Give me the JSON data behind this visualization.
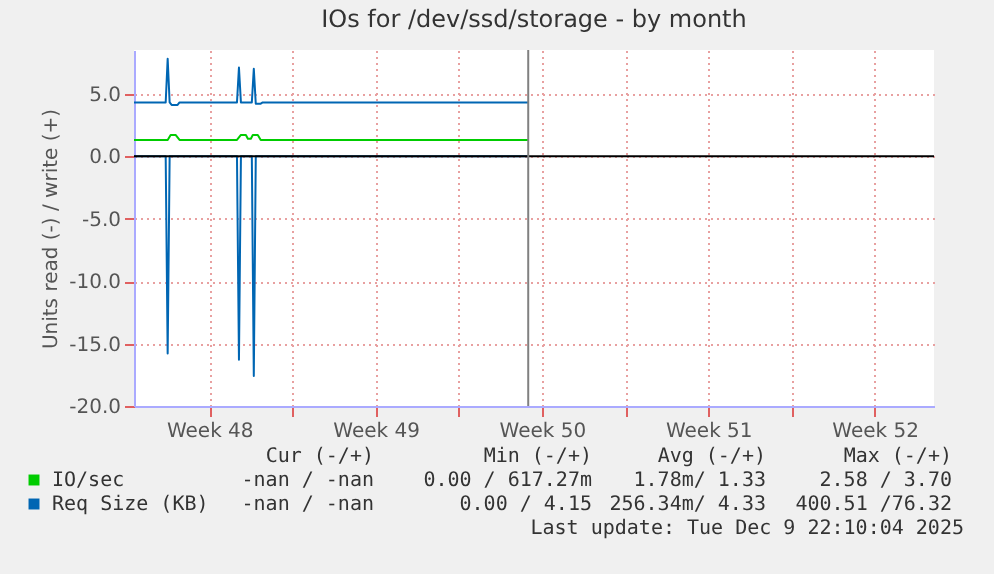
{
  "chart_data": {
    "type": "line",
    "title": "IOs for /dev/ssd/storage - by month",
    "ylabel": "Units read (-) / write (+)",
    "xlim": [
      "2025-11-23T08:00",
      "2025-12-27T00:00"
    ],
    "ylim": [
      -20,
      8.5
    ],
    "xticks": [
      {
        "value": "2025-11-26T12:00",
        "label": "Week 48"
      },
      {
        "value": "2025-11-30",
        "label": null
      },
      {
        "value": "2025-12-03T12:00",
        "label": "Week 49"
      },
      {
        "value": "2025-12-07",
        "label": null
      },
      {
        "value": "2025-12-10T12:00",
        "label": "Week 50"
      },
      {
        "value": "2025-12-14",
        "label": null
      },
      {
        "value": "2025-12-17T12:00",
        "label": "Week 51"
      },
      {
        "value": "2025-12-21",
        "label": null
      },
      {
        "value": "2025-12-24T12:00",
        "label": "Week 52"
      }
    ],
    "yticks": [
      {
        "value": 5,
        "label": "5.0"
      },
      {
        "value": 0,
        "label": "0.0"
      },
      {
        "value": -5,
        "label": "-5.0"
      },
      {
        "value": -10,
        "label": "-10.0"
      },
      {
        "value": -15,
        "label": "-15.0"
      },
      {
        "value": -20,
        "label": "-20.0"
      }
    ],
    "grid": true,
    "legend": "bottom",
    "series": [
      {
        "name": "IO/sec",
        "color": "#00cc00",
        "x": [
          "2025-11-23T08:00",
          "2025-11-24T18:00",
          "2025-11-24T21:00",
          "2025-11-25T02:00",
          "2025-11-25T06:00",
          "2025-11-27T16:00",
          "2025-11-27T20:00",
          "2025-11-28T01:00",
          "2025-11-28T03:00",
          "2025-11-28T06:00",
          "2025-11-28T08:00",
          "2025-11-28T13:00",
          "2025-11-28T16:00",
          "2025-12-09T22:10"
        ],
        "values": [
          1.3,
          1.3,
          1.7,
          1.7,
          1.3,
          1.3,
          1.7,
          1.7,
          1.4,
          1.4,
          1.7,
          1.7,
          1.3,
          1.3
        ]
      },
      {
        "name": "Req Size (KB)",
        "color": "#0066b3",
        "x": [
          "2025-11-23T08:00",
          "2025-11-24T16:00",
          "2025-11-24T18:00",
          "2025-11-24T20:00",
          "2025-11-24T22:00",
          "2025-11-25T04:00",
          "2025-11-25T06:00",
          "2025-11-27T16:00",
          "2025-11-27T18:00",
          "2025-11-27T20:00",
          "2025-11-28T07:00",
          "2025-11-28T09:00",
          "2025-11-28T11:00",
          "2025-11-28T16:00",
          "2025-11-28T18:00",
          "2025-12-09T22:10"
        ],
        "values": [
          4.3,
          4.3,
          7.8,
          4.3,
          4.1,
          4.1,
          4.3,
          4.3,
          7.1,
          4.3,
          4.3,
          7.0,
          4.2,
          4.2,
          4.3,
          4.3
        ]
      },
      {
        "color": "#0066b3",
        "x": [
          "2025-11-23T08:00",
          "2025-11-24T16:00",
          "2025-11-24T18:00",
          "2025-11-24T20:00",
          "2025-11-27T16:00",
          "2025-11-27T18:00",
          "2025-11-27T20:00",
          "2025-11-28T07:00",
          "2025-11-28T09:00",
          "2025-11-28T11:00",
          "2025-12-09T22:10"
        ],
        "values": [
          0,
          0,
          -15.8,
          0,
          0,
          -16.3,
          0,
          0,
          -17.6,
          0,
          0
        ]
      }
    ],
    "ref_lines": [
      {
        "axis": "y",
        "value": 0,
        "color": "#000000"
      },
      {
        "axis": "x",
        "value": "2025-12-09T22:10",
        "color": "#808080"
      }
    ],
    "annotations": [
      "Cur (-/+)",
      "Min (-/+)",
      "Avg (-/+)",
      "Max (-/+)",
      "-nan / -nan",
      "0.00 / 617.27m",
      "1.78m/ 1.33",
      "2.58 / 3.70",
      "-nan / -nan",
      "0.00 / 4.15",
      "256.34m/ 4.33",
      "400.51 /76.32",
      "Last update: Tue Dec  9 22:10:04 2025"
    ]
  }
}
